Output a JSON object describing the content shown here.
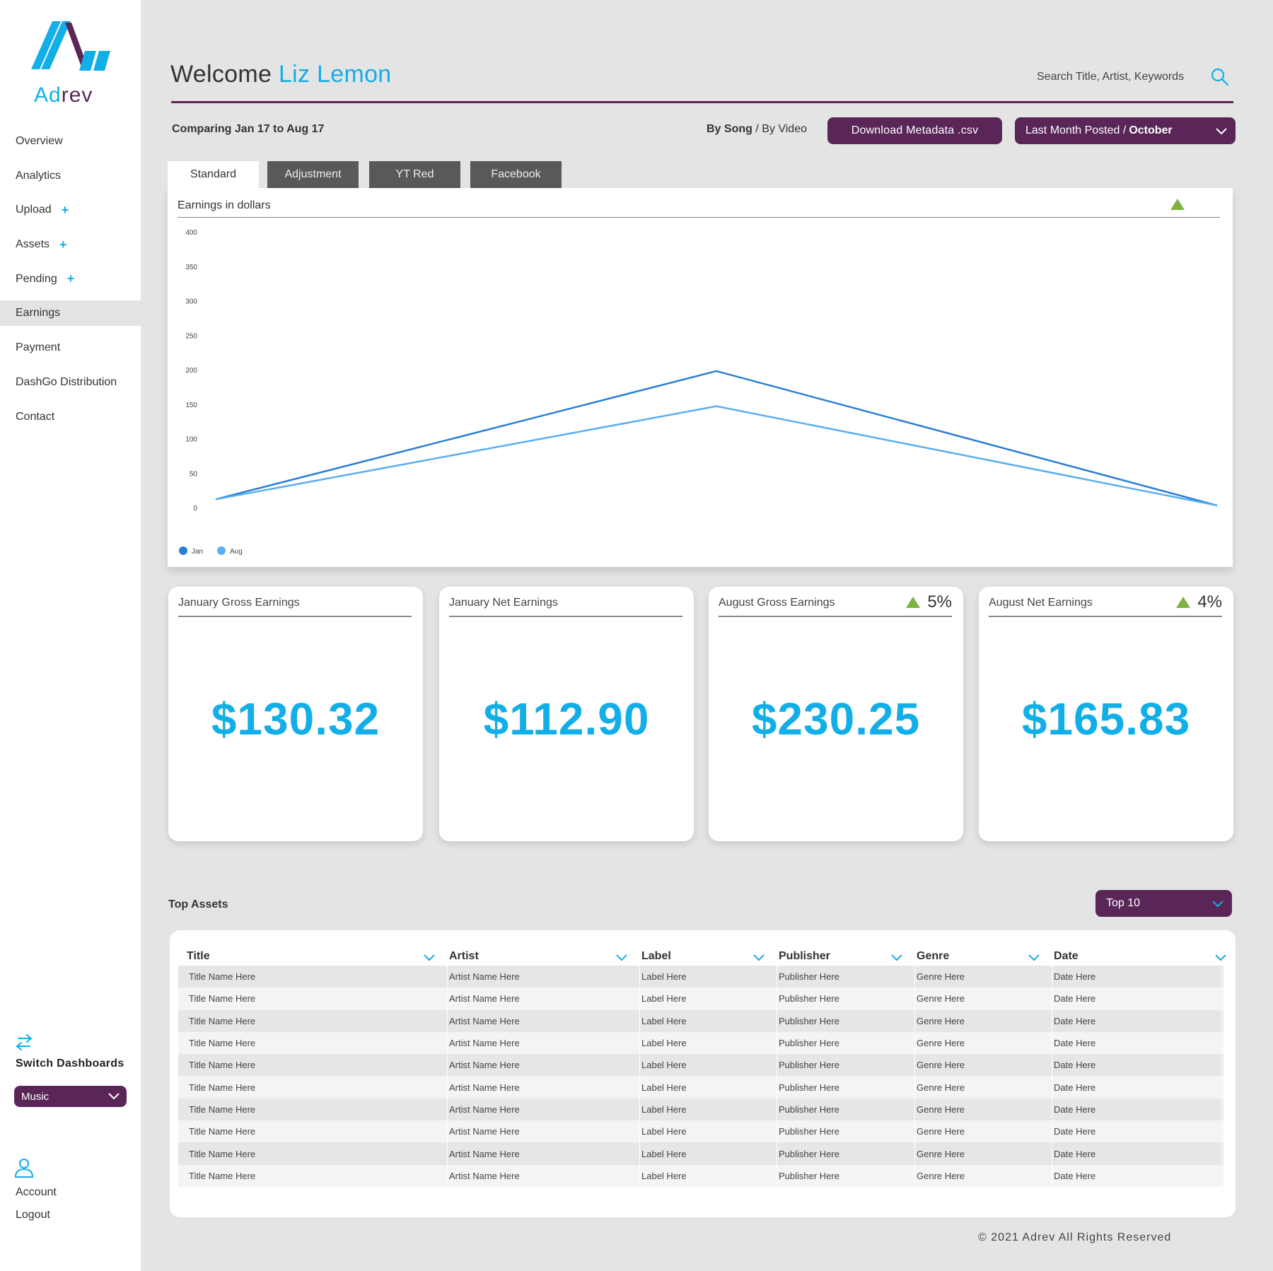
{
  "brand": {
    "name_part1": "Ad",
    "name_part2": "rev",
    "primary_color": "#12aee8",
    "secondary_color": "#5a2657"
  },
  "sidebar": {
    "items": [
      {
        "label": "Overview",
        "plus": false,
        "active": false
      },
      {
        "label": "Analytics",
        "plus": false,
        "active": false
      },
      {
        "label": "Upload",
        "plus": true,
        "active": false
      },
      {
        "label": "Assets",
        "plus": true,
        "active": false
      },
      {
        "label": "Pending",
        "plus": true,
        "active": false
      },
      {
        "label": "Earnings",
        "plus": false,
        "active": true
      },
      {
        "label": "Payment",
        "plus": false,
        "active": false
      },
      {
        "label": "DashGo Distribution",
        "plus": false,
        "active": false
      },
      {
        "label": "Contact",
        "plus": false,
        "active": false
      }
    ],
    "plus_symbol": "+",
    "switch_label": "Switch Dashboards",
    "dashboard_select": "Music",
    "account_label": "Account",
    "logout_label": "Logout"
  },
  "header": {
    "welcome": "Welcome",
    "user_name": "Liz Lemon",
    "search_placeholder": "Search Title, Artist, Keywords"
  },
  "toolbar": {
    "comparing": "Comparing Jan 17 to Aug 17",
    "by_song": "By Song",
    "separator": " / ",
    "by_video": "By Video",
    "download_label": "Download Metadata .csv",
    "month_prefix": "Last Month Posted /",
    "month_value": "October"
  },
  "tabs": [
    {
      "label": "Standard",
      "active": true
    },
    {
      "label": "Adjustment",
      "active": false
    },
    {
      "label": "YT Red",
      "active": false
    },
    {
      "label": "Facebook",
      "active": false
    }
  ],
  "chart_data": {
    "type": "line",
    "title": "Earnings in dollars",
    "x": [
      0,
      1,
      2
    ],
    "ylim": [
      0,
      400
    ],
    "yticks": [
      0,
      50,
      100,
      150,
      200,
      250,
      300,
      350,
      400
    ],
    "series": [
      {
        "name": "Jan",
        "values": [
          12,
          198,
          3
        ],
        "color": "#2a7fd4"
      },
      {
        "name": "Aug",
        "values": [
          12,
          147,
          3
        ],
        "color": "#5aaef0"
      }
    ],
    "legend_placement": "bottom-left",
    "trend_indicator": "up"
  },
  "cards": [
    {
      "title": "January Gross Earnings",
      "value": "$130.32",
      "delta": ""
    },
    {
      "title": "January Net Earnings",
      "value": "$112.90",
      "delta": ""
    },
    {
      "title": "August Gross Earnings",
      "value": "$230.25",
      "delta": "5%"
    },
    {
      "title": "August Net Earnings",
      "value": "$165.83",
      "delta": "4%"
    }
  ],
  "top_assets": {
    "title": "Top Assets",
    "select": "Top 10",
    "columns": [
      "Title",
      "Artist",
      "Label",
      "Publisher",
      "Genre",
      "Date"
    ],
    "rows": [
      [
        "Title Name Here",
        "Artist Name Here",
        "Label Here",
        "Publisher Here",
        "Genre Here",
        "Date Here"
      ],
      [
        "Title Name Here",
        "Artist Name Here",
        "Label Here",
        "Publisher Here",
        "Genre Here",
        "Date Here"
      ],
      [
        "Title Name Here",
        "Artist Name Here",
        "Label Here",
        "Publisher Here",
        "Genre Here",
        "Date Here"
      ],
      [
        "Title Name Here",
        "Artist Name Here",
        "Label Here",
        "Publisher Here",
        "Genre Here",
        "Date Here"
      ],
      [
        "Title Name Here",
        "Artist Name Here",
        "Label Here",
        "Publisher Here",
        "Genre Here",
        "Date Here"
      ],
      [
        "Title Name Here",
        "Artist Name Here",
        "Label Here",
        "Publisher Here",
        "Genre Here",
        "Date Here"
      ],
      [
        "Title Name Here",
        "Artist Name Here",
        "Label Here",
        "Publisher Here",
        "Genre Here",
        "Date Here"
      ],
      [
        "Title Name Here",
        "Artist Name Here",
        "Label Here",
        "Publisher Here",
        "Genre Here",
        "Date Here"
      ],
      [
        "Title Name Here",
        "Artist Name Here",
        "Label Here",
        "Publisher Here",
        "Genre Here",
        "Date Here"
      ],
      [
        "Title Name Here",
        "Artist Name Here",
        "Label Here",
        "Publisher Here",
        "Genre Here",
        "Date Here"
      ]
    ]
  },
  "footer": {
    "copyright": "© 2021 Adrev All Rights Reserved"
  },
  "icons": {
    "logo": "adrev-logo-icon",
    "search": "search-icon",
    "switch": "switch-arrows-icon",
    "account": "user-icon",
    "dropdown": "chevron-down-icon",
    "trend": "up-triangle-icon"
  }
}
